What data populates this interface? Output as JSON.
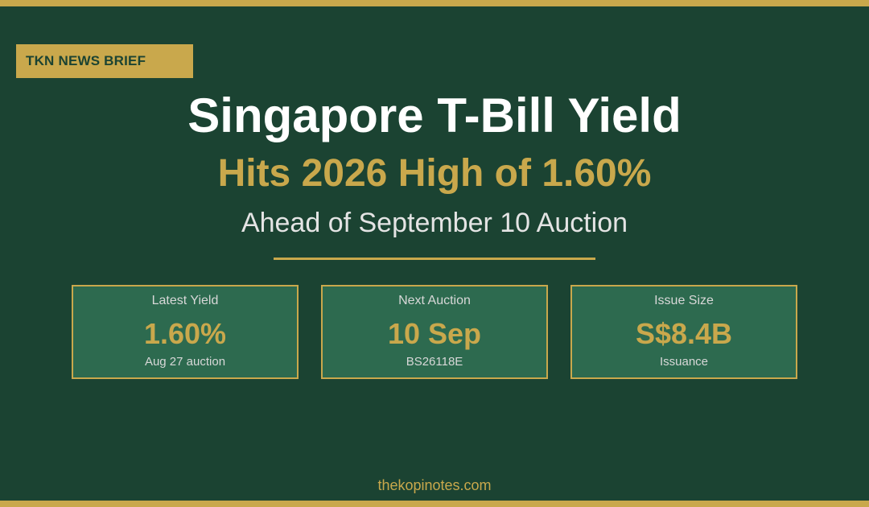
{
  "badge": "TKN NEWS BRIEF",
  "headline": {
    "title": "Singapore T-Bill Yield",
    "subtitle": "Hits 2026 High of 1.60%",
    "tagline": "Ahead of September 10 Auction"
  },
  "cards": [
    {
      "label": "Latest Yield",
      "value": "1.60%",
      "note": "Aug 27 auction"
    },
    {
      "label": "Next Auction",
      "value": "10 Sep",
      "note": "BS26118E"
    },
    {
      "label": "Issue Size",
      "value": "S$8.4B",
      "note": "Issuance"
    }
  ],
  "footer": "thekopinotes.com",
  "colors": {
    "background": "#1b4332",
    "accent": "#c9a84c",
    "card": "#2d6a4f"
  }
}
